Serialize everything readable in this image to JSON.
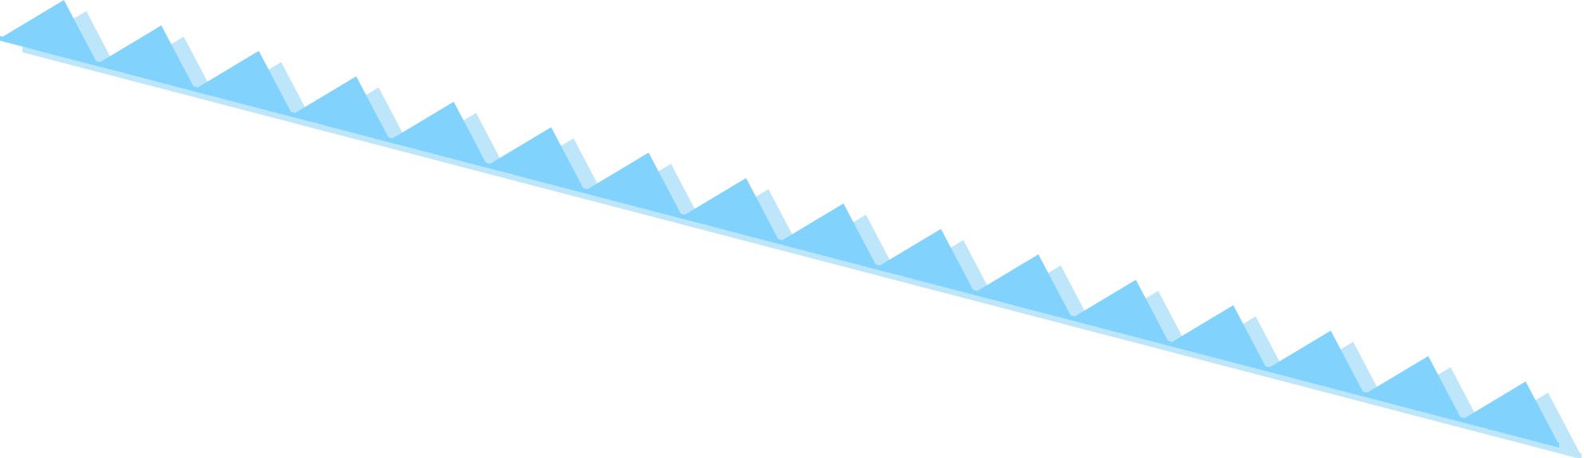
{
  "graphic": {
    "kind": "sawtooth-banner",
    "teeth_count": 16,
    "colors": {
      "main": "#82D2FE",
      "shadow": "#BDE6FB",
      "background": "#FFFFFF"
    }
  }
}
